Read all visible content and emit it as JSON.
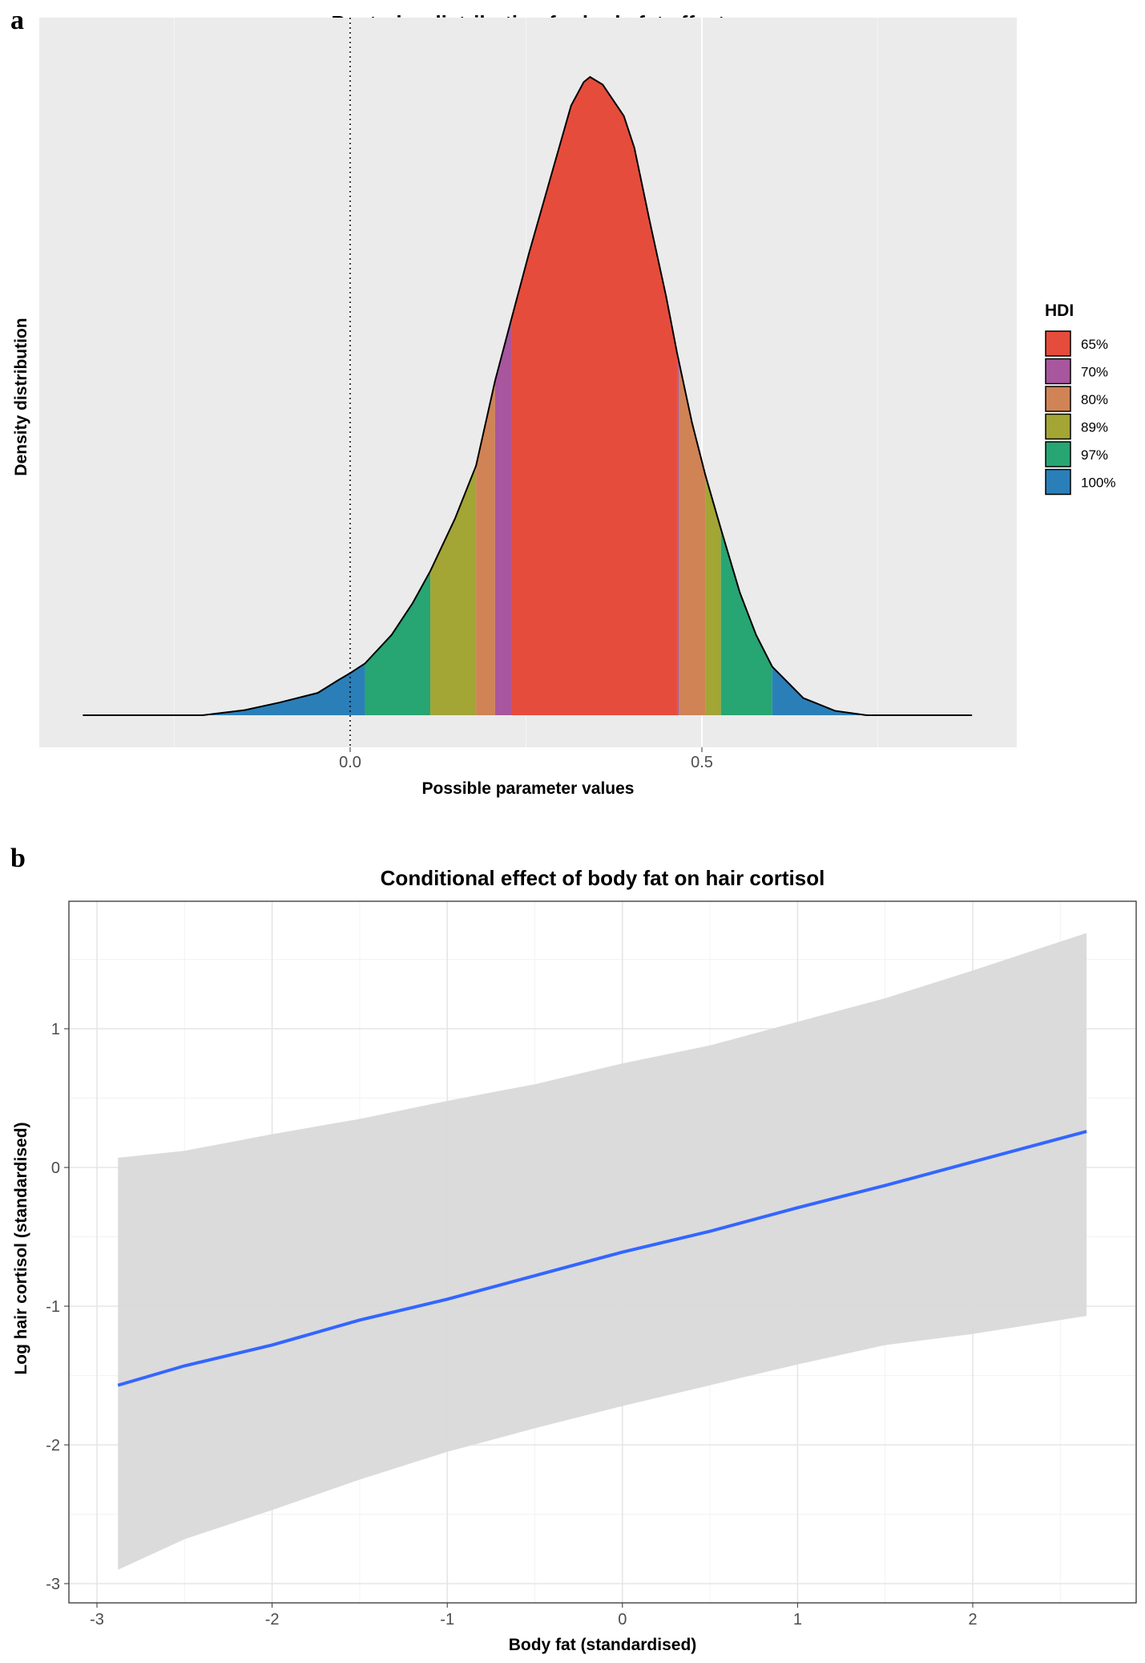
{
  "chart_data": [
    {
      "panel_label": "a",
      "type": "area",
      "title": "Posterior distribution for body fat effect",
      "xlabel": "Possible parameter values",
      "ylabel": "Density distribution",
      "xlim": [
        -0.45,
        0.95
      ],
      "x_ticks": [
        {
          "value": 0.0,
          "label": "0.0"
        },
        {
          "value": 0.5,
          "label": "0.5"
        }
      ],
      "reference_line": {
        "x": 0,
        "style": "dotted"
      },
      "density_curve": {
        "x": [
          -0.38,
          -0.21,
          -0.15,
          -0.1,
          -0.046,
          -0.017,
          0.0,
          0.021,
          0.059,
          0.089,
          0.114,
          0.149,
          0.179,
          0.206,
          0.23,
          0.254,
          0.284,
          0.314,
          0.332,
          0.341,
          0.359,
          0.389,
          0.404,
          0.426,
          0.449,
          0.465,
          0.486,
          0.505,
          0.527,
          0.554,
          0.577,
          0.6,
          0.644,
          0.689,
          0.734,
          0.884
        ],
        "density": [
          0,
          0,
          0.008,
          0.02,
          0.035,
          0.055,
          0.066,
          0.081,
          0.126,
          0.176,
          0.226,
          0.308,
          0.391,
          0.524,
          0.624,
          0.723,
          0.839,
          0.955,
          0.992,
          1.0,
          0.988,
          0.939,
          0.889,
          0.773,
          0.657,
          0.566,
          0.458,
          0.376,
          0.292,
          0.192,
          0.126,
          0.076,
          0.027,
          0.007,
          0,
          0
        ]
      },
      "hdi_bands": [
        {
          "label": "100%",
          "from": -0.38,
          "to": 0.021,
          "color": "#2A7FB8"
        },
        {
          "label": "97%",
          "from": 0.021,
          "to": 0.114,
          "color": "#27A572"
        },
        {
          "label": "89%",
          "from": 0.114,
          "to": 0.179,
          "color": "#A3A535"
        },
        {
          "label": "80%",
          "from": 0.179,
          "to": 0.206,
          "color": "#D08355"
        },
        {
          "label": "70%",
          "from": 0.206,
          "to": 0.23,
          "color": "#A8569D"
        },
        {
          "label": "65%",
          "from": 0.23,
          "to": 0.465,
          "color": "#E64C3B"
        },
        {
          "label": "70%",
          "from": 0.465,
          "to": 0.467,
          "color": "#A8569D"
        },
        {
          "label": "80%",
          "from": 0.467,
          "to": 0.505,
          "color": "#D08355"
        },
        {
          "label": "89%",
          "from": 0.505,
          "to": 0.527,
          "color": "#A3A535"
        },
        {
          "label": "97%",
          "from": 0.527,
          "to": 0.6,
          "color": "#27A572"
        },
        {
          "label": "100%",
          "from": 0.6,
          "to": 0.884,
          "color": "#2A7FB8"
        }
      ],
      "legend": {
        "title": "HDI",
        "placement": "right",
        "items": [
          {
            "label": "65%",
            "color": "#E64C3B"
          },
          {
            "label": "70%",
            "color": "#A8569D"
          },
          {
            "label": "80%",
            "color": "#D08355"
          },
          {
            "label": "89%",
            "color": "#A3A535"
          },
          {
            "label": "97%",
            "color": "#27A572"
          },
          {
            "label": "100%",
            "color": "#2A7FB8"
          }
        ]
      }
    },
    {
      "panel_label": "b",
      "type": "line",
      "title": "Conditional effect of body fat on hair cortisol",
      "xlabel": "Body fat (standardised)",
      "ylabel": "Log hair cortisol (standardised)",
      "xlim": [
        -3.15,
        2.95
      ],
      "ylim": [
        -3.25,
        1.87
      ],
      "x_ticks": [
        {
          "value": -3,
          "label": "-3"
        },
        {
          "value": -2,
          "label": "-2"
        },
        {
          "value": -1,
          "label": "-1"
        },
        {
          "value": 0,
          "label": "0"
        },
        {
          "value": 1,
          "label": "1"
        },
        {
          "value": 2,
          "label": "2"
        }
      ],
      "y_ticks": [
        {
          "value": 1,
          "label": "1"
        },
        {
          "value": 0,
          "label": "0"
        },
        {
          "value": -1,
          "label": "-1"
        },
        {
          "value": -2,
          "label": "-2"
        },
        {
          "value": -3,
          "label": "-3"
        }
      ],
      "x": [
        -2.88,
        -2.5,
        -2,
        -1.5,
        -1,
        -0.5,
        0,
        0.5,
        1,
        1.5,
        2,
        2.65
      ],
      "estimate": [
        -1.57,
        -1.43,
        -1.28,
        -1.1,
        -0.95,
        -0.78,
        -0.61,
        -0.46,
        -0.29,
        -0.13,
        0.04,
        0.26
      ],
      "upper": [
        0.07,
        0.12,
        0.24,
        0.35,
        0.48,
        0.6,
        0.75,
        0.88,
        1.05,
        1.22,
        1.42,
        1.69
      ],
      "lower": [
        -2.9,
        -2.68,
        -2.47,
        -2.25,
        -2.05,
        -1.88,
        -1.72,
        -1.57,
        -1.42,
        -1.28,
        -1.2,
        -1.07
      ],
      "line_color": "#3366FF",
      "ribbon_color": "#D9D9D9"
    }
  ]
}
